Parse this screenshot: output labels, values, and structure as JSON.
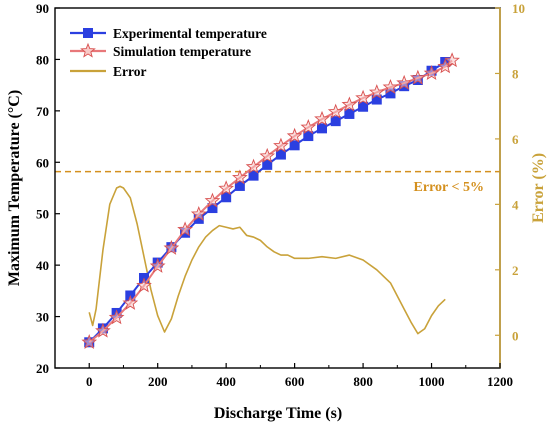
{
  "chart_data": {
    "type": "line",
    "x_axis": {
      "label": "Discharge Time (s)",
      "range": [
        -100,
        1200
      ],
      "ticks": [
        "0",
        "200",
        "400",
        "600",
        "800",
        "1000",
        "1200"
      ]
    },
    "y_axis_left": {
      "label": "Maximum Temperature (°C)",
      "range": [
        20,
        90
      ],
      "ticks": [
        "20",
        "30",
        "40",
        "50",
        "60",
        "70",
        "80",
        "90"
      ]
    },
    "y_axis_right": {
      "label": "Error (%)",
      "range": [
        -1,
        10
      ],
      "ticks": [
        "0",
        "2",
        "4",
        "6",
        "8",
        "10"
      ],
      "color": "#C9A23A"
    },
    "legend": {
      "placement": "top-left",
      "entries": [
        "Experimental temperature",
        "Simulation temperature",
        "Error"
      ]
    },
    "annotation": {
      "text": "Error < 5%",
      "threshold": 5,
      "color": "#D4901E"
    },
    "series": [
      {
        "name": "Experimental temperature",
        "axis": "left",
        "color": "#2B3FE0",
        "marker": "square",
        "x": [
          0,
          40,
          80,
          120,
          160,
          200,
          240,
          280,
          320,
          360,
          400,
          440,
          480,
          520,
          560,
          600,
          640,
          680,
          720,
          760,
          800,
          840,
          880,
          920,
          960,
          1000,
          1040
        ],
        "y": [
          25.0,
          27.7,
          30.7,
          34.1,
          37.5,
          40.5,
          43.5,
          46.3,
          49.0,
          51.1,
          53.2,
          55.4,
          57.4,
          59.5,
          61.5,
          63.3,
          65.1,
          66.6,
          68.0,
          69.4,
          70.8,
          72.2,
          73.4,
          74.8,
          76.0,
          77.8,
          79.5
        ]
      },
      {
        "name": "Simulation temperature",
        "axis": "left",
        "color": "#E8787A",
        "marker": "star",
        "x": [
          0,
          40,
          80,
          120,
          160,
          200,
          240,
          280,
          320,
          360,
          400,
          440,
          480,
          520,
          560,
          600,
          640,
          680,
          720,
          760,
          800,
          840,
          880,
          920,
          960,
          1000,
          1040,
          1060
        ],
        "y": [
          25.0,
          27.2,
          29.8,
          32.6,
          36.0,
          39.8,
          43.3,
          46.9,
          49.9,
          52.5,
          54.9,
          57.0,
          59.1,
          61.2,
          63.2,
          65.1,
          66.8,
          68.4,
          69.8,
          71.2,
          72.5,
          73.6,
          74.6,
          75.4,
          76.4,
          77.3,
          78.6,
          79.8
        ]
      },
      {
        "name": "Error",
        "axis": "right",
        "color": "#C9A23A",
        "marker": "none",
        "x": [
          0,
          10,
          20,
          40,
          60,
          80,
          90,
          100,
          120,
          140,
          160,
          180,
          200,
          220,
          240,
          260,
          280,
          300,
          320,
          340,
          360,
          380,
          400,
          420,
          440,
          460,
          480,
          500,
          520,
          540,
          560,
          580,
          600,
          640,
          680,
          720,
          760,
          800,
          840,
          880,
          920,
          940,
          960,
          980,
          1000,
          1020,
          1040
        ],
        "y": [
          0.7,
          0.3,
          0.8,
          2.6,
          4.0,
          4.5,
          4.55,
          4.5,
          4.2,
          3.4,
          2.4,
          1.4,
          0.6,
          0.1,
          0.5,
          1.2,
          1.8,
          2.3,
          2.7,
          3.0,
          3.2,
          3.35,
          3.3,
          3.25,
          3.3,
          3.05,
          3.0,
          2.9,
          2.7,
          2.55,
          2.45,
          2.45,
          2.35,
          2.35,
          2.4,
          2.35,
          2.45,
          2.3,
          2.0,
          1.6,
          0.8,
          0.4,
          0.05,
          0.2,
          0.6,
          0.9,
          1.1
        ]
      }
    ]
  }
}
